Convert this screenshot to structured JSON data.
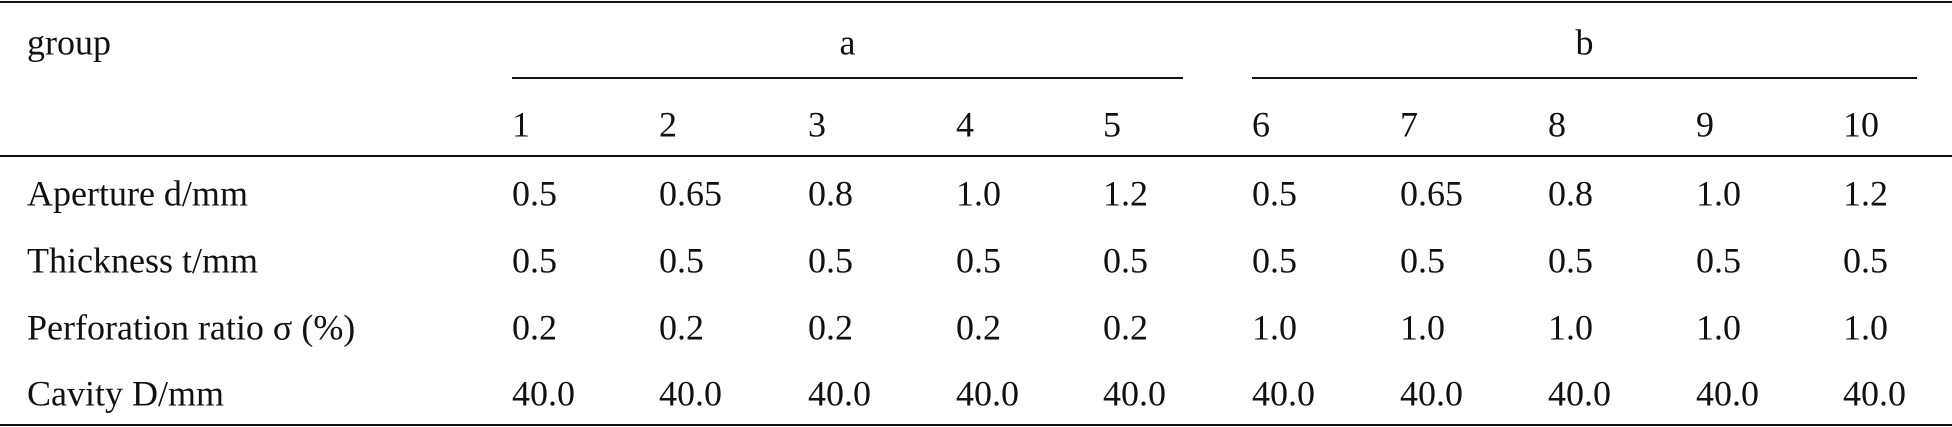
{
  "table": {
    "group_label": "group",
    "groups": [
      {
        "label": "a",
        "columns": [
          1,
          2,
          3,
          4,
          5
        ]
      },
      {
        "label": "b",
        "columns": [
          6,
          7,
          8,
          9,
          10
        ]
      }
    ],
    "rows": [
      {
        "label": "Aperture d/mm",
        "values": [
          "0.5",
          "0.65",
          "0.8",
          "1.0",
          "1.2",
          "0.5",
          "0.65",
          "0.8",
          "1.0",
          "1.2"
        ]
      },
      {
        "label": "Thickness t/mm",
        "values": [
          "0.5",
          "0.5",
          "0.5",
          "0.5",
          "0.5",
          "0.5",
          "0.5",
          "0.5",
          "0.5",
          "0.5"
        ]
      },
      {
        "label": "Perforation ratio σ (%)",
        "values": [
          "0.2",
          "0.2",
          "0.2",
          "0.2",
          "0.2",
          "1.0",
          "1.0",
          "1.0",
          "1.0",
          "1.0"
        ]
      },
      {
        "label": "Cavity D/mm",
        "values": [
          "40.0",
          "40.0",
          "40.0",
          "40.0",
          "40.0",
          "40.0",
          "40.0",
          "40.0",
          "40.0",
          "40.0"
        ]
      }
    ]
  }
}
